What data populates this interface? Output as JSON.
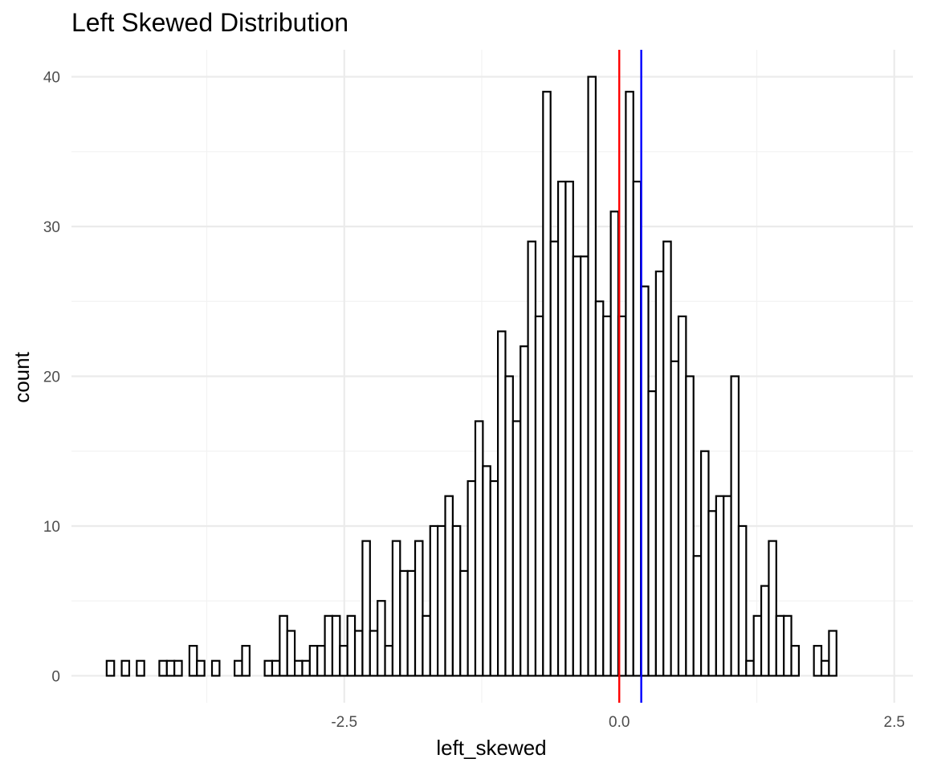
{
  "chart_data": {
    "type": "bar",
    "title": "Left Skewed Distribution",
    "xlabel": "left_skewed",
    "ylabel": "count",
    "xlim": [
      -4.98,
      2.67
    ],
    "ylim": [
      -1.8,
      41.8
    ],
    "x_ticks": [
      -2.5,
      0.0,
      2.5
    ],
    "x_tick_labels": [
      "-2.5",
      "0.0",
      "2.5"
    ],
    "y_ticks": [
      0,
      10,
      20,
      30,
      40
    ],
    "y_tick_labels": [
      "0",
      "10",
      "20",
      "30",
      "40"
    ],
    "grid": true,
    "bin_width": 0.0684,
    "bin_start": -4.66,
    "counts": [
      1,
      0,
      1,
      0,
      1,
      0,
      0,
      1,
      1,
      1,
      0,
      2,
      1,
      0,
      1,
      0,
      0,
      1,
      2,
      0,
      0,
      1,
      1,
      4,
      3,
      1,
      1,
      2,
      2,
      4,
      4,
      2,
      4,
      3,
      9,
      3,
      5,
      2,
      9,
      7,
      7,
      9,
      4,
      10,
      10,
      12,
      10,
      7,
      13,
      17,
      14,
      13,
      23,
      20,
      17,
      22,
      29,
      24,
      39,
      29,
      33,
      33,
      28,
      28,
      40,
      25,
      24,
      31,
      24,
      39,
      33,
      26,
      19,
      27,
      29,
      21,
      24,
      20,
      8,
      15,
      11,
      12,
      12,
      20,
      10,
      1,
      4,
      6,
      9,
      4,
      4,
      2,
      0,
      0,
      2,
      1,
      3
    ],
    "vlines": [
      {
        "x": 0.0,
        "color": "#ff0000"
      },
      {
        "x": 0.2,
        "color": "#0000ff"
      }
    ]
  }
}
